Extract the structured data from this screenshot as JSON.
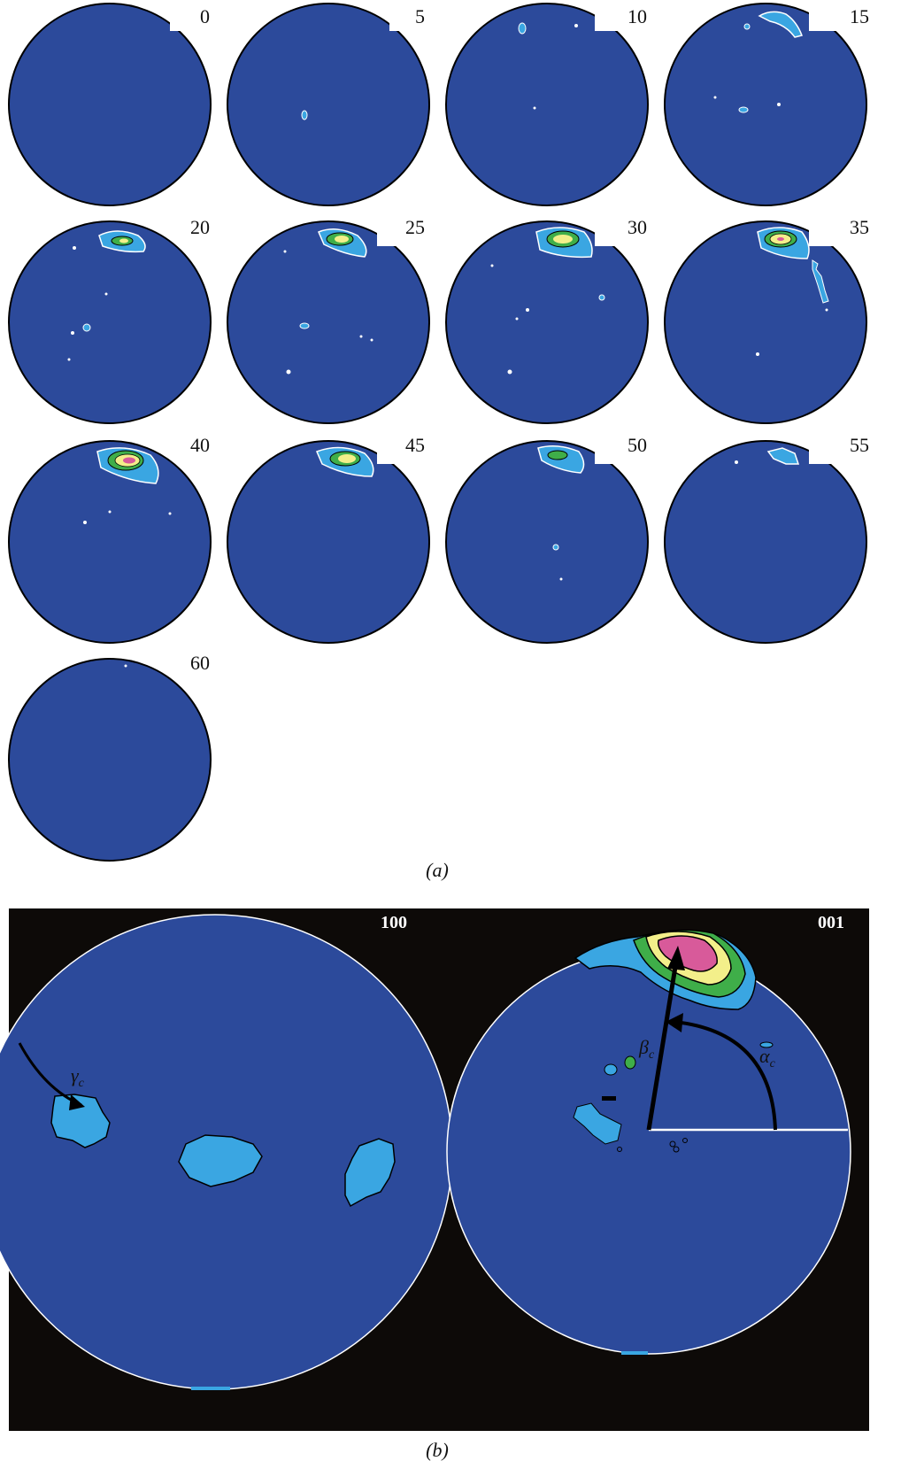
{
  "figure_a": {
    "panels": [
      "0",
      "5",
      "10",
      "15",
      "20",
      "25",
      "30",
      "35",
      "40",
      "45",
      "50",
      "55",
      "60"
    ],
    "caption": "(a)"
  },
  "figure_b": {
    "left_label": "100",
    "right_label": "001",
    "gamma_label": "γ",
    "gamma_sub": "c",
    "beta_label": "β",
    "beta_sub": "c",
    "alpha_label": "α",
    "alpha_sub": "c",
    "caption": "(b)"
  },
  "colors": {
    "pole_blue": "#2c4a9b",
    "light_blue": "#3aa6e2",
    "green": "#3fae49",
    "yellow": "#f3ef8a",
    "pink": "#d85a9a",
    "background_b": "#0d0a08"
  }
}
